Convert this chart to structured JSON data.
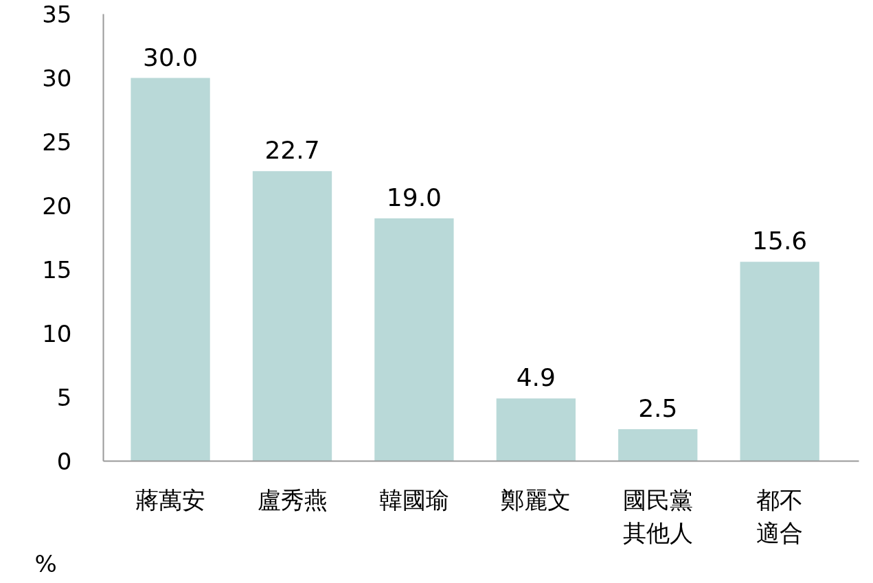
{
  "chart_data": {
    "type": "bar",
    "categories": [
      "蔣萬安",
      "盧秀燕",
      "韓國瑜",
      "鄭麗文",
      "國民黨其他人",
      "都不適合"
    ],
    "values": [
      30.0,
      22.7,
      19.0,
      4.9,
      2.5,
      15.6
    ],
    "value_labels": [
      "30.0",
      "22.7",
      "19.0",
      "4.9",
      "2.5",
      "15.6"
    ],
    "color": "#b9d9d8",
    "ylabel": "%",
    "ylim": [
      0,
      35
    ],
    "yticks": [
      0,
      5,
      10,
      15,
      20,
      25,
      30,
      35
    ],
    "grid": false
  }
}
